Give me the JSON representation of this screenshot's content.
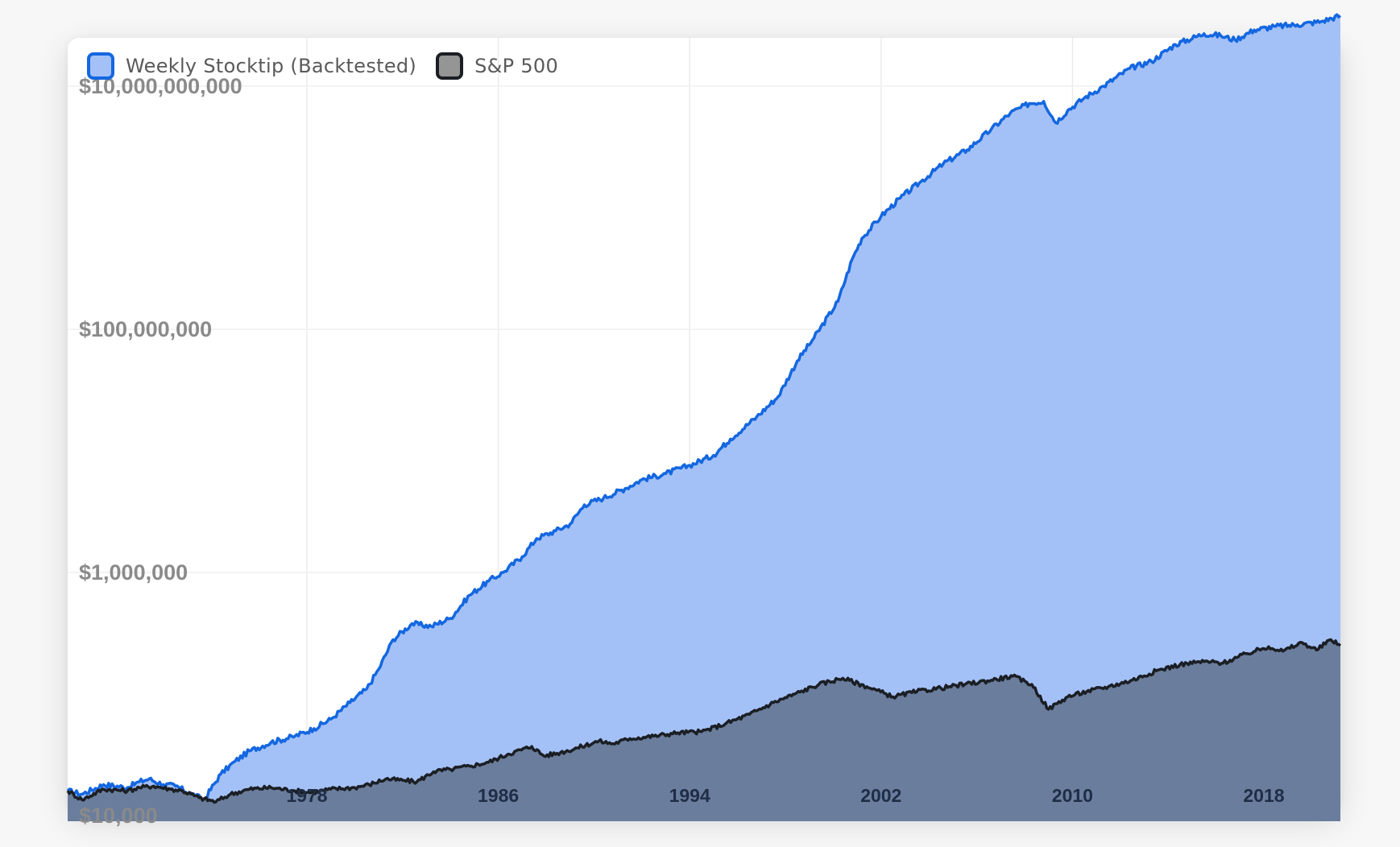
{
  "chart_data": {
    "type": "area",
    "y_scale": "log",
    "ylim": [
      10000,
      100000000000
    ],
    "xlim": [
      1968,
      2021.2
    ],
    "y_ticks": [
      {
        "value": 10000,
        "label": "$10,000"
      },
      {
        "value": 1000000,
        "label": "$1,000,000"
      },
      {
        "value": 100000000,
        "label": "$100,000,000"
      },
      {
        "value": 10000000000,
        "label": "$10,000,000,000"
      }
    ],
    "x_ticks": [
      {
        "value": 1978,
        "label": "1978"
      },
      {
        "value": 1986,
        "label": "1986"
      },
      {
        "value": 1994,
        "label": "1994"
      },
      {
        "value": 2002,
        "label": "2002"
      },
      {
        "value": 2010,
        "label": "2010"
      },
      {
        "value": 2018,
        "label": "2018"
      }
    ],
    "grid": true,
    "legend_position": "top-left",
    "series": [
      {
        "name": "Weekly Stocktip (Backtested)",
        "line_color": "#1467e0",
        "fill_color": "#a4c1f7",
        "points": [
          [
            1968,
            16000
          ],
          [
            1968.6,
            15000
          ],
          [
            1969.5,
            18000
          ],
          [
            1970.5,
            17000
          ],
          [
            1971,
            19000
          ],
          [
            1971.4,
            20000
          ],
          [
            1972,
            18000
          ],
          [
            1972.5,
            17500
          ],
          [
            1973.2,
            15000
          ],
          [
            1973.7,
            13500
          ],
          [
            1974.4,
            22000
          ],
          [
            1975,
            28000
          ],
          [
            1975.6,
            34000
          ],
          [
            1976.5,
            40000
          ],
          [
            1977.5,
            45000
          ],
          [
            1978.3,
            52000
          ],
          [
            1979,
            62000
          ],
          [
            1979.8,
            85000
          ],
          [
            1980.5,
            110000
          ],
          [
            1981,
            160000
          ],
          [
            1981.6,
            280000
          ],
          [
            1982.4,
            380000
          ],
          [
            1983.2,
            360000
          ],
          [
            1984,
            420000
          ],
          [
            1984.8,
            650000
          ],
          [
            1985.6,
            850000
          ],
          [
            1986.2,
            1000000
          ],
          [
            1987,
            1350000
          ],
          [
            1987.6,
            1900000
          ],
          [
            1988.4,
            2200000
          ],
          [
            1989,
            2500000
          ],
          [
            1989.6,
            3600000
          ],
          [
            1990.4,
            4100000
          ],
          [
            1991.3,
            4900000
          ],
          [
            1992,
            5800000
          ],
          [
            1993,
            6500000
          ],
          [
            1994,
            7600000
          ],
          [
            1995,
            9200000
          ],
          [
            1995.7,
            12500000
          ],
          [
            1996.8,
            19000000
          ],
          [
            1997.7,
            28000000
          ],
          [
            1998.5,
            55000000
          ],
          [
            1999.2,
            85000000
          ],
          [
            2000.2,
            170000000
          ],
          [
            2000.8,
            380000000
          ],
          [
            2001.2,
            560000000
          ],
          [
            2002,
            850000000
          ],
          [
            2002.8,
            1200000000
          ],
          [
            2003.6,
            1600000000
          ],
          [
            2004.6,
            2300000000
          ],
          [
            2005.6,
            3000000000
          ],
          [
            2006.6,
            4400000000
          ],
          [
            2007.4,
            6000000000
          ],
          [
            2008.2,
            7200000000
          ],
          [
            2008.8,
            7500000000
          ],
          [
            2009.3,
            5000000000
          ],
          [
            2009.8,
            6300000000
          ],
          [
            2010.5,
            8000000000
          ],
          [
            2011.3,
            10000000000
          ],
          [
            2012.4,
            14000000000
          ],
          [
            2013.3,
            16000000000
          ],
          [
            2014.3,
            22000000000
          ],
          [
            2015.5,
            27000000000
          ],
          [
            2016.2,
            26000000000
          ],
          [
            2016.8,
            24000000000
          ],
          [
            2017.6,
            29000000000
          ],
          [
            2018.5,
            31000000000
          ],
          [
            2019.4,
            32000000000
          ],
          [
            2020.4,
            34000000000
          ],
          [
            2021.2,
            38000000000
          ]
        ]
      },
      {
        "name": "S&P 500",
        "line_color": "#1b1f24",
        "fill_color": "#6a7d9c",
        "points": [
          [
            1968,
            16000
          ],
          [
            1968.6,
            13500
          ],
          [
            1969.5,
            16500
          ],
          [
            1970.5,
            16000
          ],
          [
            1971,
            17000
          ],
          [
            1971.6,
            17500
          ],
          [
            1972.3,
            16500
          ],
          [
            1972.8,
            16000
          ],
          [
            1973.5,
            14000
          ],
          [
            1974.2,
            13000
          ],
          [
            1974.8,
            15000
          ],
          [
            1975.6,
            16500
          ],
          [
            1976.5,
            17000
          ],
          [
            1977.5,
            16000
          ],
          [
            1978.2,
            15500
          ],
          [
            1979,
            16500
          ],
          [
            1980,
            17000
          ],
          [
            1980.6,
            18000
          ],
          [
            1981.3,
            20000
          ],
          [
            1982,
            19500
          ],
          [
            1982.6,
            19000
          ],
          [
            1983.3,
            23000
          ],
          [
            1984,
            24000
          ],
          [
            1984.8,
            25500
          ],
          [
            1985.6,
            27500
          ],
          [
            1986.4,
            32000
          ],
          [
            1987.4,
            37000
          ],
          [
            1987.9,
            31000
          ],
          [
            1988.6,
            33000
          ],
          [
            1989.3,
            36000
          ],
          [
            1990.2,
            41000
          ],
          [
            1990.8,
            39000
          ],
          [
            1991.5,
            43000
          ],
          [
            1992.5,
            45000
          ],
          [
            1993.5,
            48000
          ],
          [
            1994.5,
            49000
          ],
          [
            1995.5,
            57000
          ],
          [
            1996.5,
            68000
          ],
          [
            1997.5,
            85000
          ],
          [
            1998.4,
            100000
          ],
          [
            1999.4,
            120000
          ],
          [
            2000.4,
            135000
          ],
          [
            2001.4,
            115000
          ],
          [
            2002.5,
            95000
          ],
          [
            2003.5,
            105000
          ],
          [
            2004.5,
            112000
          ],
          [
            2005.5,
            120000
          ],
          [
            2006.6,
            130000
          ],
          [
            2007.5,
            140000
          ],
          [
            2008.3,
            120000
          ],
          [
            2009,
            75000
          ],
          [
            2009.8,
            95000
          ],
          [
            2010.6,
            105000
          ],
          [
            2011.5,
            115000
          ],
          [
            2012.5,
            130000
          ],
          [
            2013.5,
            155000
          ],
          [
            2014.5,
            175000
          ],
          [
            2015.5,
            185000
          ],
          [
            2016.3,
            180000
          ],
          [
            2017.3,
            215000
          ],
          [
            2018.2,
            245000
          ],
          [
            2018.8,
            225000
          ],
          [
            2019.6,
            265000
          ],
          [
            2020.2,
            230000
          ],
          [
            2020.8,
            280000
          ],
          [
            2021.2,
            250000
          ]
        ]
      }
    ]
  }
}
